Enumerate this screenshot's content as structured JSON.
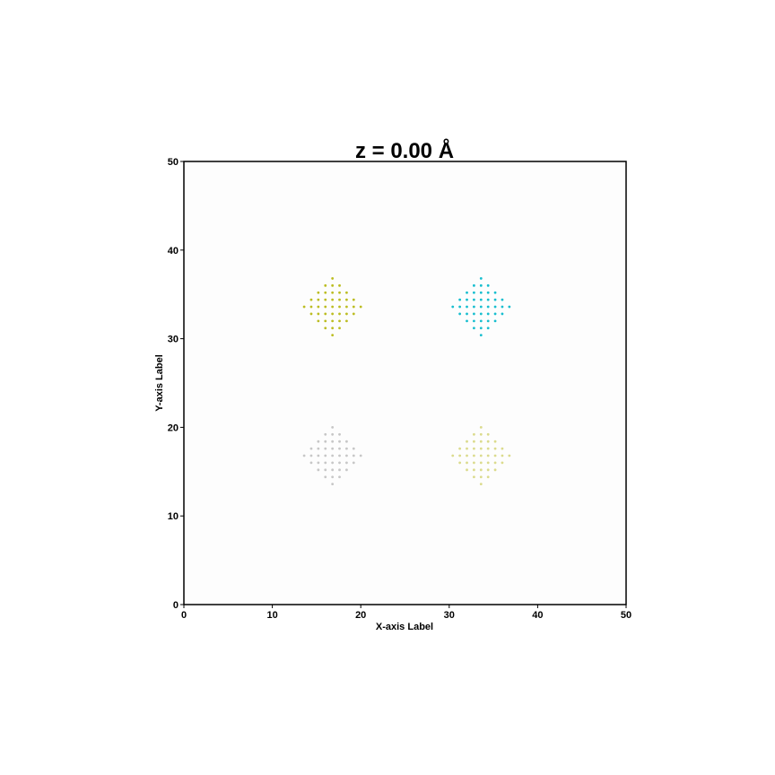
{
  "chart_data": {
    "type": "scatter",
    "title": "z = 0.00 Å",
    "xlabel": "X-axis Label",
    "ylabel": "Y-axis Label",
    "xlim": [
      0,
      50
    ],
    "ylim": [
      0,
      50
    ],
    "xticks": [
      "0",
      "10",
      "20",
      "30",
      "40",
      "50"
    ],
    "yticks": [
      "0",
      "10",
      "20",
      "30",
      "40",
      "50"
    ],
    "grid": false,
    "plot_background": "#fdfdfd",
    "series": [
      {
        "color": "#bcbd22",
        "center": [
          16.8,
          33.6
        ],
        "half_width": 3.4,
        "spacing": 0.8
      },
      {
        "color": "#17becf",
        "center": [
          33.6,
          33.6
        ],
        "half_width": 3.4,
        "spacing": 0.8
      },
      {
        "color": "#c7c7c7",
        "center": [
          16.8,
          16.8
        ],
        "half_width": 3.4,
        "spacing": 0.8
      },
      {
        "color": "#dbdb8d",
        "center": [
          33.6,
          16.8
        ],
        "half_width": 3.4,
        "spacing": 0.8
      }
    ]
  }
}
